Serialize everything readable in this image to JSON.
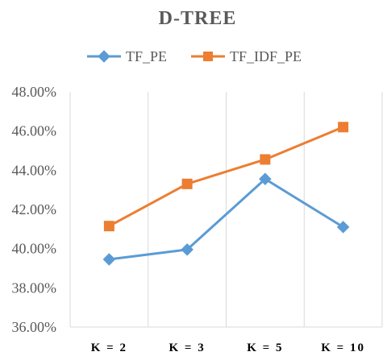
{
  "chart_data": {
    "type": "line",
    "title": "D-TREE",
    "categories": [
      "K = 2",
      "K = 3",
      "K = 5",
      "K = 10"
    ],
    "series": [
      {
        "name": "TF_PE",
        "color": "#5B9BD5",
        "marker": "diamond",
        "values": [
          39.45,
          39.95,
          43.55,
          41.1
        ]
      },
      {
        "name": "TF_IDF_PE",
        "color": "#ED7D31",
        "marker": "square",
        "values": [
          41.15,
          43.3,
          44.55,
          46.2
        ]
      }
    ],
    "ylim": [
      36,
      48
    ],
    "yticks": [
      36,
      38,
      40,
      42,
      44,
      46,
      48
    ],
    "ytick_labels": [
      "36.00%",
      "38.00%",
      "40.00%",
      "42.00%",
      "44.00%",
      "46.00%",
      "48.00%"
    ],
    "legend_position": "top",
    "grid": "vertical"
  }
}
